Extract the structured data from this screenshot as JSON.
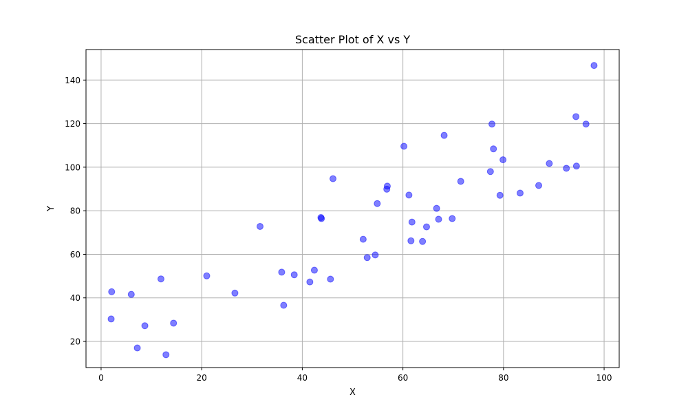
{
  "chart_data": {
    "type": "scatter",
    "title": "Scatter Plot of X vs Y",
    "xlabel": "X",
    "ylabel": "Y",
    "xlim": [
      -3,
      103
    ],
    "ylim": [
      8,
      154
    ],
    "xticks": [
      0,
      20,
      40,
      60,
      80,
      100
    ],
    "yticks": [
      20,
      40,
      60,
      80,
      100,
      120,
      140
    ],
    "xtick_labels": [
      "0",
      "20",
      "40",
      "60",
      "80",
      "100"
    ],
    "ytick_labels": [
      "20",
      "40",
      "60",
      "80",
      "100",
      "120",
      "140"
    ],
    "grid": true,
    "colors": {
      "marker_fill": "#0000ff",
      "marker_alpha": 0.5,
      "grid": "#b0b0b0",
      "axes": "#000000"
    },
    "series": [
      {
        "x": [
          2.0,
          2.1,
          6.0,
          7.2,
          8.7,
          11.9,
          12.9,
          14.4,
          21.0,
          26.6,
          31.6,
          35.9,
          36.3,
          38.4,
          41.5,
          42.4,
          43.7,
          43.8,
          45.6,
          46.1,
          52.1,
          52.9,
          54.5,
          54.9,
          56.8,
          56.9,
          60.2,
          61.2,
          61.6,
          61.8,
          63.9,
          64.7,
          66.7,
          67.1,
          68.2,
          69.8,
          71.5,
          77.4,
          77.7,
          78.0,
          79.3,
          79.9,
          83.3,
          87.0,
          89.1,
          92.5,
          94.4,
          94.5,
          96.4,
          98.0
        ],
        "y": [
          30.3,
          42.8,
          41.6,
          17.0,
          27.2,
          48.7,
          13.9,
          28.4,
          50.1,
          42.2,
          72.8,
          51.8,
          36.6,
          50.6,
          47.3,
          52.7,
          76.9,
          76.4,
          48.6,
          94.7,
          66.9,
          58.5,
          59.7,
          83.3,
          89.9,
          91.3,
          109.6,
          87.2,
          66.2,
          74.8,
          65.9,
          72.6,
          81.1,
          76.1,
          114.6,
          76.4,
          93.5,
          98.0,
          119.8,
          108.4,
          87.1,
          103.4,
          88.1,
          91.6,
          101.7,
          99.5,
          123.2,
          100.5,
          119.8,
          146.7
        ]
      }
    ]
  }
}
